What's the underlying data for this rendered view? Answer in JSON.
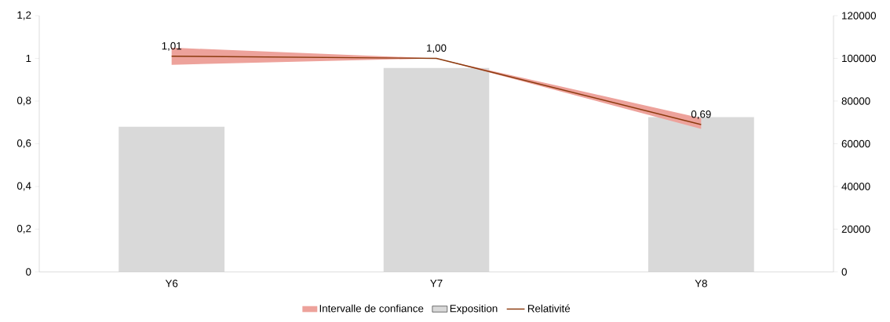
{
  "chart_data": {
    "type": "bar",
    "categories": [
      "Y6",
      "Y7",
      "Y8"
    ],
    "series": [
      {
        "name": "Exposition",
        "axis": "y2",
        "color": "#d9d9d9",
        "values": [
          68000,
          95500,
          72500
        ]
      },
      {
        "name": "Relativité",
        "type": "line",
        "color": "#8b3a0e",
        "values": [
          1.01,
          1.0,
          0.69
        ],
        "value_labels": [
          "1,01",
          "1,00",
          "0,69"
        ],
        "lower": [
          0.97,
          1.0,
          0.67
        ],
        "upper": [
          1.05,
          1.0,
          0.72
        ]
      }
    ],
    "annotations": [
      "Intervalle de confiance"
    ],
    "ylim": [
      0,
      1.2
    ],
    "yticks": [
      0,
      {
        "value": 0.2,
        "label": "0,2"
      },
      {
        "value": 0.4,
        "label": "0,4"
      },
      {
        "value": 0.6,
        "label": "0,6"
      },
      {
        "value": 0.8,
        "label": "0,8"
      },
      1,
      {
        "value": 1.2,
        "label": "1,2"
      }
    ],
    "y2lim": [
      0,
      120000
    ],
    "y2ticks": [
      0,
      20000,
      40000,
      60000,
      80000,
      100000,
      120000
    ],
    "grid": false,
    "legend": "bottom"
  }
}
